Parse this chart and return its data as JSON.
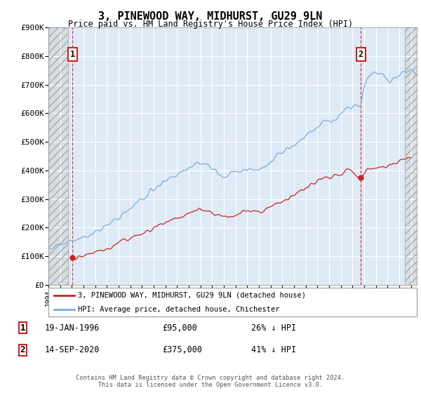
{
  "title": "3, PINEWOOD WAY, MIDHURST, GU29 9LN",
  "subtitle": "Price paid vs. HM Land Registry's House Price Index (HPI)",
  "legend_line1": "3, PINEWOOD WAY, MIDHURST, GU29 9LN (detached house)",
  "legend_line2": "HPI: Average price, detached house, Chichester",
  "point1_label": "1",
  "point1_date": "19-JAN-1996",
  "point1_price": 95000,
  "point1_hpi_pct": "26% ↓ HPI",
  "point2_label": "2",
  "point2_date": "14-SEP-2020",
  "point2_price": 375000,
  "point2_hpi_pct": "41% ↓ HPI",
  "footer": "Contains HM Land Registry data © Crown copyright and database right 2024.\nThis data is licensed under the Open Government Licence v3.0.",
  "ylim": [
    0,
    900000
  ],
  "yticks": [
    0,
    100000,
    200000,
    300000,
    400000,
    500000,
    600000,
    700000,
    800000,
    900000
  ],
  "hpi_color": "#7aabde",
  "property_color": "#cc2222",
  "bg_chart": "#deeaf5",
  "grid_color": "#ffffff",
  "point1_x_year": 1996.05,
  "point2_x_year": 2020.71,
  "xmin": 1994.0,
  "xmax": 2025.5,
  "hatch_right_start": 2024.5
}
